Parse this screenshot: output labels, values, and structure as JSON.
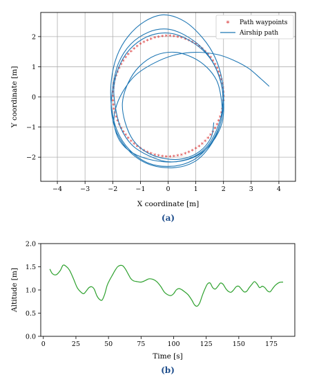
{
  "chart_data": [
    {
      "type": "line",
      "panel_label": "(a)",
      "xlabel": "X coordinate [m]",
      "ylabel": "Y coordinate [m]",
      "xlim": [
        -4.6,
        4.6
      ],
      "ylim": [
        -2.8,
        2.8
      ],
      "xticks": [
        -4,
        -3,
        -2,
        -1,
        0,
        1,
        2,
        3,
        4
      ],
      "xtick_labels": [
        "−4",
        "−3",
        "−2",
        "−1",
        "0",
        "1",
        "2",
        "3",
        "4"
      ],
      "yticks": [
        -2,
        -1,
        0,
        1,
        2
      ],
      "ytick_labels": [
        "−2",
        "−1",
        "0",
        "1",
        "2"
      ],
      "grid": true,
      "legend_position": "top-right",
      "series": [
        {
          "name": "Path waypoints",
          "marker": "star",
          "color": "#d62728",
          "shape": "circle",
          "center": [
            0,
            0
          ],
          "radius": 2,
          "count": 90
        },
        {
          "name": "Airship path",
          "color": "#1f77b4",
          "points": [
            [
              3.65,
              0.35
            ],
            [
              3.35,
              0.6
            ],
            [
              2.9,
              0.95
            ],
            [
              2.4,
              1.2
            ],
            [
              1.8,
              1.4
            ],
            [
              1.0,
              1.48
            ],
            [
              0.2,
              1.38
            ],
            [
              -0.55,
              1.1
            ],
            [
              -1.2,
              0.7
            ],
            [
              -1.65,
              0.15
            ],
            [
              -1.9,
              -0.4
            ],
            [
              -1.95,
              -0.9
            ],
            [
              -1.75,
              -1.45
            ],
            [
              -1.3,
              -1.85
            ],
            [
              -0.55,
              -2.1
            ],
            [
              0.3,
              -2.15
            ],
            [
              1.05,
              -1.95
            ],
            [
              1.6,
              -1.5
            ],
            [
              1.95,
              -0.85
            ],
            [
              2.0,
              -0.1
            ],
            [
              1.85,
              0.65
            ],
            [
              1.5,
              1.3
            ],
            [
              0.9,
              1.8
            ],
            [
              0.15,
              2.1
            ],
            [
              -0.6,
              2.05
            ],
            [
              -1.25,
              1.7
            ],
            [
              -1.7,
              1.15
            ],
            [
              -1.95,
              0.4
            ],
            [
              -1.9,
              -0.35
            ],
            [
              -1.7,
              -1.05
            ],
            [
              -1.3,
              -1.6
            ],
            [
              -0.7,
              -1.95
            ],
            [
              0.0,
              -2.15
            ],
            [
              0.75,
              -2.05
            ],
            [
              1.35,
              -1.7
            ],
            [
              1.75,
              -1.1
            ],
            [
              1.95,
              -0.45
            ],
            [
              1.95,
              0.3
            ],
            [
              1.7,
              1.0
            ],
            [
              1.25,
              1.6
            ],
            [
              0.6,
              2.05
            ],
            [
              -0.05,
              2.25
            ],
            [
              -0.7,
              2.15
            ],
            [
              -1.35,
              1.75
            ],
            [
              -1.8,
              1.1
            ],
            [
              -2.0,
              0.3
            ],
            [
              -2.05,
              -0.45
            ],
            [
              -1.85,
              -1.2
            ],
            [
              -1.35,
              -1.85
            ],
            [
              -0.65,
              -2.25
            ],
            [
              0.2,
              -2.35
            ],
            [
              0.95,
              -2.15
            ],
            [
              1.5,
              -1.65
            ],
            [
              1.85,
              -1.0
            ],
            [
              2.0,
              -0.25
            ],
            [
              1.95,
              0.55
            ],
            [
              1.7,
              1.3
            ],
            [
              1.25,
              1.95
            ],
            [
              0.6,
              2.5
            ],
            [
              -0.15,
              2.72
            ],
            [
              -0.85,
              2.5
            ],
            [
              -1.45,
              2.0
            ],
            [
              -1.85,
              1.35
            ],
            [
              -2.05,
              0.55
            ],
            [
              -2.05,
              -0.3
            ],
            [
              -1.85,
              -1.1
            ],
            [
              -1.4,
              -1.75
            ],
            [
              -0.7,
              -2.2
            ],
            [
              0.15,
              -2.3
            ],
            [
              0.9,
              -2.1
            ],
            [
              1.45,
              -1.65
            ],
            [
              1.8,
              -1.1
            ],
            [
              1.95,
              -0.6
            ],
            [
              1.9,
              0.05
            ],
            [
              1.75,
              0.55
            ],
            [
              1.4,
              0.98
            ],
            [
              0.9,
              1.3
            ],
            [
              0.25,
              1.48
            ],
            [
              -0.45,
              1.38
            ],
            [
              -1.05,
              1.0
            ],
            [
              -1.45,
              0.45
            ],
            [
              -1.65,
              -0.2
            ],
            [
              -1.55,
              -0.85
            ],
            [
              -1.25,
              -1.45
            ],
            [
              -0.75,
              -1.85
            ],
            [
              -0.1,
              -2.05
            ],
            [
              0.55,
              -2.05
            ],
            [
              1.15,
              -1.8
            ],
            [
              1.55,
              -1.35
            ],
            [
              1.65,
              -0.85
            ]
          ]
        }
      ]
    },
    {
      "type": "line",
      "panel_label": "(b)",
      "xlabel": "Time [s]",
      "ylabel": "Altitude [m]",
      "xlim": [
        -2,
        193
      ],
      "ylim": [
        0,
        2.0
      ],
      "xticks": [
        0,
        25,
        50,
        75,
        100,
        125,
        150,
        175
      ],
      "xtick_labels": [
        "0",
        "25",
        "50",
        "75",
        "100",
        "125",
        "150",
        "175"
      ],
      "yticks": [
        0.0,
        0.5,
        1.0,
        1.5,
        2.0
      ],
      "ytick_labels": [
        "0.0",
        "0.5",
        "1.0",
        "1.5",
        "2.0"
      ],
      "grid": false,
      "series": [
        {
          "name": "",
          "color": "#2ca02c",
          "points": [
            [
              5,
              1.45
            ],
            [
              7,
              1.35
            ],
            [
              10,
              1.33
            ],
            [
              13,
              1.42
            ],
            [
              15,
              1.53
            ],
            [
              17,
              1.52
            ],
            [
              20,
              1.43
            ],
            [
              23,
              1.25
            ],
            [
              26,
              1.05
            ],
            [
              29,
              0.95
            ],
            [
              31,
              0.92
            ],
            [
              33,
              0.98
            ],
            [
              35,
              1.05
            ],
            [
              37,
              1.07
            ],
            [
              39,
              1.02
            ],
            [
              41,
              0.88
            ],
            [
              43,
              0.8
            ],
            [
              45,
              0.78
            ],
            [
              47,
              0.9
            ],
            [
              49,
              1.1
            ],
            [
              51,
              1.22
            ],
            [
              53,
              1.32
            ],
            [
              55,
              1.42
            ],
            [
              57,
              1.5
            ],
            [
              59,
              1.53
            ],
            [
              61,
              1.52
            ],
            [
              63,
              1.45
            ],
            [
              65,
              1.35
            ],
            [
              67,
              1.25
            ],
            [
              69,
              1.2
            ],
            [
              72,
              1.18
            ],
            [
              75,
              1.17
            ],
            [
              78,
              1.2
            ],
            [
              81,
              1.24
            ],
            [
              84,
              1.23
            ],
            [
              87,
              1.18
            ],
            [
              90,
              1.08
            ],
            [
              93,
              0.95
            ],
            [
              96,
              0.89
            ],
            [
              98,
              0.88
            ],
            [
              100,
              0.92
            ],
            [
              102,
              1.0
            ],
            [
              104,
              1.03
            ],
            [
              106,
              1.01
            ],
            [
              108,
              0.97
            ],
            [
              111,
              0.9
            ],
            [
              114,
              0.78
            ],
            [
              116,
              0.68
            ],
            [
              118,
              0.65
            ],
            [
              120,
              0.72
            ],
            [
              122,
              0.88
            ],
            [
              124,
              1.02
            ],
            [
              126,
              1.13
            ],
            [
              128,
              1.15
            ],
            [
              130,
              1.05
            ],
            [
              132,
              1.02
            ],
            [
              134,
              1.08
            ],
            [
              136,
              1.15
            ],
            [
              138,
              1.12
            ],
            [
              140,
              1.03
            ],
            [
              142,
              0.97
            ],
            [
              144,
              0.95
            ],
            [
              146,
              1.0
            ],
            [
              148,
              1.07
            ],
            [
              150,
              1.08
            ],
            [
              152,
              1.02
            ],
            [
              154,
              0.96
            ],
            [
              156,
              0.97
            ],
            [
              158,
              1.05
            ],
            [
              160,
              1.12
            ],
            [
              162,
              1.18
            ],
            [
              164,
              1.13
            ],
            [
              166,
              1.05
            ],
            [
              168,
              1.08
            ],
            [
              170,
              1.05
            ],
            [
              172,
              0.98
            ],
            [
              174,
              0.96
            ],
            [
              176,
              1.03
            ],
            [
              178,
              1.1
            ],
            [
              181,
              1.16
            ],
            [
              184,
              1.17
            ]
          ]
        }
      ]
    }
  ]
}
